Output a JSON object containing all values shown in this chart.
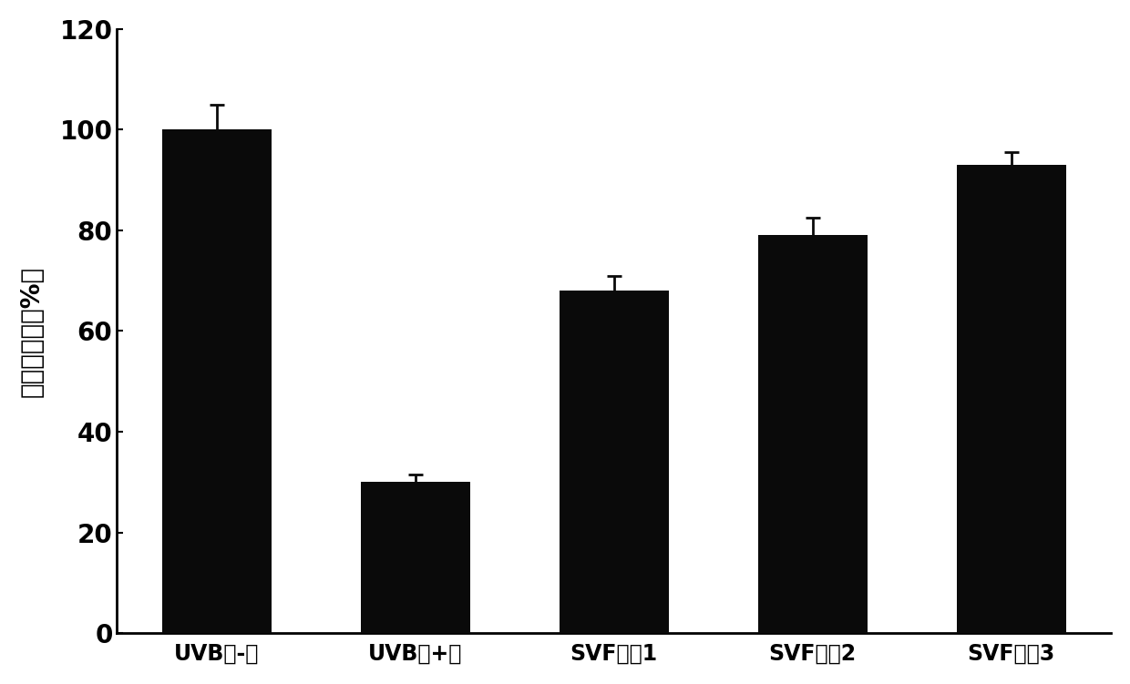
{
  "categories": [
    "UVB（-）",
    "UVB（+）",
    "SVF制制1",
    "SVF制制2",
    "SVF制制3"
  ],
  "values": [
    100,
    30,
    68,
    79,
    93
  ],
  "errors": [
    5,
    1.5,
    3,
    3.5,
    2.5
  ],
  "bar_color": "#0a0a0a",
  "bar_width": 0.55,
  "ylim": [
    0,
    120
  ],
  "yticks": [
    0,
    20,
    40,
    60,
    80,
    100,
    120
  ],
  "ylabel": "细胞存活率（%）",
  "ylabel_fontsize": 20,
  "xlabel_fontsize": 17,
  "tick_fontsize": 20,
  "background_color": "#ffffff",
  "error_capsize": 6,
  "error_linewidth": 2.0,
  "error_color": "#0a0a0a"
}
